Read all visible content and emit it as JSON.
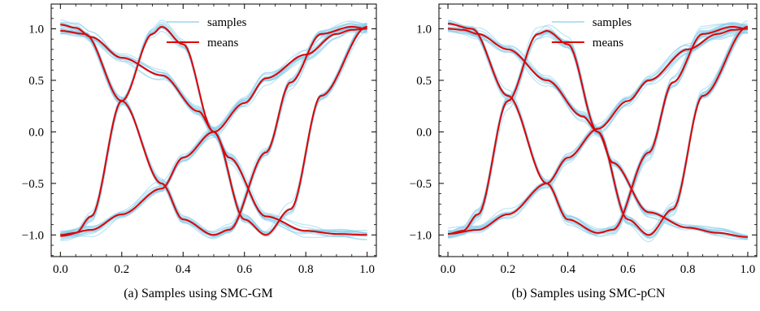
{
  "figure": {
    "captions": [
      "(a) Samples using SMC-GM",
      "(b) Samples using SMC-pCN"
    ]
  },
  "chart_data": [
    {
      "type": "line",
      "panel": "a",
      "caption": "(a) Samples using SMC-GM",
      "xlim": [
        -0.03,
        1.03
      ],
      "ylim": [
        -1.21,
        1.24
      ],
      "xticks": [
        0.0,
        0.2,
        0.4,
        0.6,
        0.8,
        1.0
      ],
      "xtick_labels": [
        "0.0",
        "0.2",
        "0.4",
        "0.6",
        "0.8",
        "1.0"
      ],
      "yticks": [
        -1.0,
        -0.5,
        0.0,
        0.5,
        1.0
      ],
      "ytick_labels": [
        "−1.0",
        "−0.5",
        "0.0",
        "0.5",
        "1.0"
      ],
      "grid": false,
      "legend": {
        "position": "top-center",
        "entries": [
          {
            "label": "samples",
            "color": "#87ceeb"
          },
          {
            "label": "means",
            "color": "#e00000"
          }
        ]
      },
      "colors": {
        "samples": "#87ceeb",
        "means": "#e00000"
      },
      "series": [
        {
          "x": [
            0.0,
            0.05,
            0.1,
            0.2,
            0.33,
            0.45,
            0.5,
            0.55,
            0.67,
            0.8,
            0.9,
            1.0
          ],
          "y": [
            1.04,
            1.01,
            0.92,
            0.72,
            0.55,
            0.2,
            0.0,
            -0.25,
            -0.82,
            -0.96,
            -0.99,
            -1.0
          ]
        },
        {
          "x": [
            0.0,
            0.05,
            0.1,
            0.2,
            0.3,
            0.33,
            0.4,
            0.5,
            0.6,
            0.67,
            0.75,
            0.85,
            1.0
          ],
          "y": [
            -1.0,
            -0.98,
            -0.82,
            0.3,
            0.95,
            1.02,
            0.85,
            0.0,
            -0.85,
            -1.0,
            -0.75,
            0.35,
            1.02
          ]
        },
        {
          "x": [
            0.0,
            0.1,
            0.2,
            0.33,
            0.4,
            0.5,
            0.6,
            0.67,
            0.8,
            0.9,
            0.95,
            1.0
          ],
          "y": [
            -1.01,
            -0.95,
            -0.8,
            -0.55,
            -0.25,
            0.0,
            0.28,
            0.52,
            0.75,
            0.95,
            0.99,
            1.0
          ]
        },
        {
          "x": [
            0.0,
            0.08,
            0.2,
            0.33,
            0.4,
            0.5,
            0.55,
            0.67,
            0.75,
            0.85,
            0.95,
            1.0
          ],
          "y": [
            0.98,
            0.95,
            0.3,
            -0.5,
            -0.85,
            -1.0,
            -0.95,
            -0.2,
            0.48,
            0.95,
            1.02,
            1.0
          ]
        }
      ]
    },
    {
      "type": "line",
      "panel": "b",
      "caption": "(b) Samples using SMC-pCN",
      "xlim": [
        -0.03,
        1.03
      ],
      "ylim": [
        -1.21,
        1.24
      ],
      "xticks": [
        0.0,
        0.2,
        0.4,
        0.6,
        0.8,
        1.0
      ],
      "xtick_labels": [
        "0.0",
        "0.2",
        "0.4",
        "0.6",
        "0.8",
        "1.0"
      ],
      "yticks": [
        -1.0,
        -0.5,
        0.0,
        0.5,
        1.0
      ],
      "ytick_labels": [
        "−1.0",
        "−0.5",
        "0.0",
        "0.5",
        "1.0"
      ],
      "grid": false,
      "legend": {
        "position": "top-center",
        "entries": [
          {
            "label": "samples",
            "color": "#87ceeb"
          },
          {
            "label": "means",
            "color": "#e00000"
          }
        ]
      },
      "colors": {
        "samples": "#87ceeb",
        "means": "#e00000"
      },
      "series": [
        {
          "x": [
            0.0,
            0.05,
            0.1,
            0.2,
            0.33,
            0.45,
            0.5,
            0.55,
            0.67,
            0.8,
            0.9,
            1.0
          ],
          "y": [
            1.0,
            0.99,
            0.95,
            0.8,
            0.5,
            0.15,
            0.0,
            -0.3,
            -0.78,
            -0.93,
            -0.98,
            -1.02
          ]
        },
        {
          "x": [
            0.0,
            0.05,
            0.1,
            0.2,
            0.3,
            0.33,
            0.4,
            0.5,
            0.6,
            0.67,
            0.75,
            0.85,
            1.0
          ],
          "y": [
            -0.99,
            -0.96,
            -0.8,
            0.3,
            0.95,
            0.98,
            0.85,
            0.0,
            -0.85,
            -1.0,
            -0.75,
            0.35,
            1.02
          ]
        },
        {
          "x": [
            0.0,
            0.1,
            0.2,
            0.33,
            0.4,
            0.5,
            0.6,
            0.67,
            0.8,
            0.9,
            0.95,
            1.0
          ],
          "y": [
            -0.99,
            -0.95,
            -0.8,
            -0.5,
            -0.25,
            0.03,
            0.3,
            0.5,
            0.8,
            0.95,
            0.99,
            1.0
          ]
        },
        {
          "x": [
            0.0,
            0.08,
            0.2,
            0.33,
            0.4,
            0.5,
            0.55,
            0.67,
            0.75,
            0.85,
            0.95,
            1.0
          ],
          "y": [
            1.05,
            1.0,
            0.35,
            -0.5,
            -0.85,
            -0.98,
            -0.95,
            -0.2,
            0.48,
            0.95,
            1.02,
            1.0
          ]
        }
      ]
    }
  ]
}
